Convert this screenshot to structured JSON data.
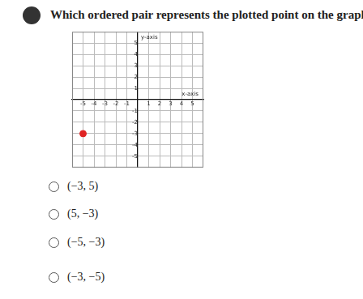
{
  "question": "Which ordered pair represents the plotted point on the graph?",
  "options": [
    "(−3, 5)",
    "(5, −3)",
    "(−5, −3)",
    "(−3, −5)"
  ],
  "chart_data": {
    "type": "scatter",
    "x_label": "x-axis",
    "y_label": "y-axis",
    "x": [
      -5
    ],
    "values": [
      -3
    ],
    "color": "#e02424",
    "xlim": [
      -6,
      6
    ],
    "ylim": [
      -6,
      6
    ],
    "xticks": [
      -5,
      -4,
      -3,
      -2,
      -1,
      1,
      2,
      3,
      4,
      5
    ],
    "yticks": [
      -5,
      -4,
      -3,
      -2,
      -1,
      1,
      2,
      3,
      4,
      5
    ],
    "grid": true
  }
}
